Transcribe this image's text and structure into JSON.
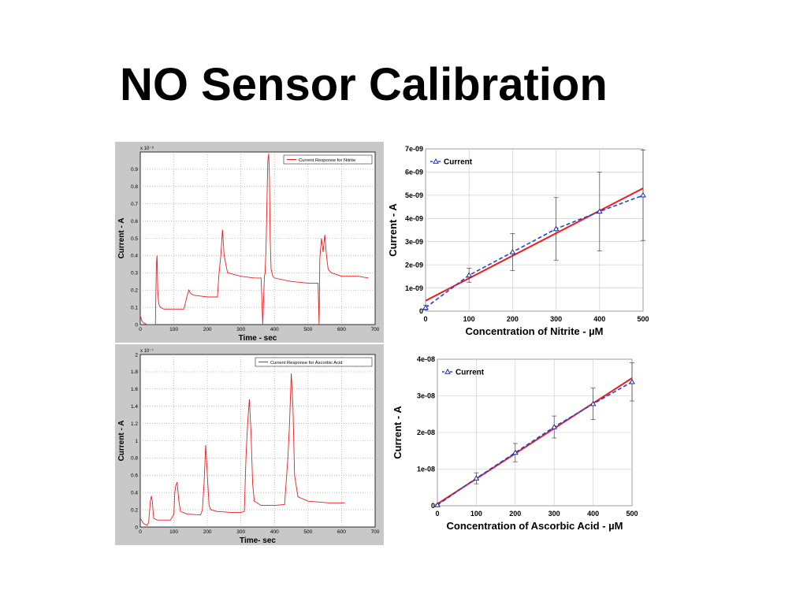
{
  "slide": {
    "title": "NO Sensor Calibration"
  },
  "colors": {
    "trace": "#ee1c1c",
    "fit": "#ee1c1c",
    "trend": "#2244dd",
    "marker": "#1a2aa8",
    "grid": "#c8c8c8",
    "panel_bg": "#c8c8c8"
  },
  "chart_data": [
    {
      "id": "nitrite-time",
      "type": "line",
      "xlabel": "Time - sec",
      "ylabel": "Current - A",
      "exponent_label": "x 10⁻⁸",
      "legend": "Current Response for Nitrite",
      "legend_position": "top-right",
      "grid": true,
      "xlim": [
        0,
        700
      ],
      "ylim": [
        0,
        1
      ],
      "xticks": [
        "0",
        "100",
        "200",
        "300",
        "400",
        "500",
        "600",
        "700"
      ],
      "yticks": [
        "0",
        "0.1",
        "0.2",
        "0.3",
        "0.4",
        "0.5",
        "0.6",
        "0.7",
        "0.8",
        "0.9"
      ],
      "series": [
        {
          "x": [
            0,
            5,
            10,
            20,
            30,
            40,
            45,
            48,
            50,
            52,
            55,
            60,
            70,
            90,
            110,
            130,
            140,
            145,
            150,
            160,
            200,
            230,
            235,
            240,
            245,
            250,
            260,
            300,
            340,
            360,
            365,
            370,
            372,
            375,
            380,
            383,
            385,
            387,
            390,
            395,
            400,
            450,
            500,
            530,
            533,
            535,
            540,
            545,
            550,
            555,
            560,
            570,
            600,
            650,
            680
          ],
          "y": [
            0.05,
            0.02,
            0.01,
            0.0,
            0.0,
            0.0,
            0.0,
            0.35,
            0.4,
            0.2,
            0.12,
            0.1,
            0.09,
            0.09,
            0.09,
            0.09,
            0.17,
            0.2,
            0.18,
            0.17,
            0.16,
            0.16,
            0.3,
            0.4,
            0.55,
            0.4,
            0.3,
            0.28,
            0.27,
            0.27,
            0.0,
            0.28,
            0.3,
            0.45,
            0.95,
            0.99,
            0.85,
            0.5,
            0.32,
            0.28,
            0.27,
            0.25,
            0.24,
            0.24,
            0.0,
            0.38,
            0.5,
            0.42,
            0.52,
            0.4,
            0.32,
            0.3,
            0.28,
            0.28,
            0.27
          ]
        }
      ]
    },
    {
      "id": "ascorbic-time",
      "type": "line",
      "xlabel": "Time- sec",
      "ylabel": "Current - A",
      "exponent_label": "x 10⁻⁷",
      "legend": "Current Response for Ascorbic Acid",
      "legend_position": "top-right",
      "grid": true,
      "xlim": [
        0,
        700
      ],
      "ylim": [
        0,
        2
      ],
      "xticks": [
        "0",
        "100",
        "200",
        "300",
        "400",
        "500",
        "600",
        "700"
      ],
      "yticks": [
        "0",
        "0.2",
        "0.4",
        "0.6",
        "0.8",
        "1",
        "1.2",
        "1.4",
        "1.6",
        "1.8",
        "2"
      ],
      "series": [
        {
          "x": [
            0,
            10,
            20,
            25,
            30,
            33,
            36,
            40,
            50,
            90,
            100,
            103,
            106,
            110,
            115,
            120,
            140,
            180,
            185,
            190,
            195,
            200,
            205,
            210,
            230,
            270,
            300,
            310,
            315,
            320,
            325,
            330,
            335,
            340,
            360,
            400,
            430,
            440,
            445,
            450,
            455,
            460,
            470,
            500,
            560,
            610
          ],
          "y": [
            0.1,
            0.04,
            0.02,
            0.05,
            0.3,
            0.36,
            0.3,
            0.1,
            0.08,
            0.08,
            0.15,
            0.4,
            0.48,
            0.52,
            0.3,
            0.18,
            0.15,
            0.14,
            0.2,
            0.5,
            0.95,
            0.6,
            0.25,
            0.2,
            0.18,
            0.17,
            0.17,
            0.18,
            0.8,
            1.2,
            1.48,
            1.1,
            0.5,
            0.3,
            0.25,
            0.25,
            0.26,
            0.8,
            1.2,
            1.78,
            1.4,
            0.6,
            0.35,
            0.3,
            0.28,
            0.28
          ]
        }
      ]
    },
    {
      "id": "nitrite-cal",
      "type": "scatter",
      "xlabel": "Concentration of Nitrite - µM",
      "ylabel": "Current - A",
      "legend": "Current",
      "legend_position": "top-left",
      "grid": true,
      "xlim": [
        0,
        500
      ],
      "ylim": [
        0,
        7e-09
      ],
      "xticks": [
        "0",
        "100",
        "200",
        "300",
        "400",
        "500"
      ],
      "yticks": [
        "0",
        "1e-09",
        "2e-09",
        "3e-09",
        "4e-09",
        "5e-09",
        "6e-09",
        "7e-09"
      ],
      "series": [
        {
          "name": "Current",
          "x": [
            0,
            100,
            200,
            300,
            400,
            500
          ],
          "y": [
            1.5e-10,
            1.55e-09,
            2.55e-09,
            3.55e-09,
            4.3e-09,
            5e-09
          ],
          "err": [
            1e-10,
            3e-10,
            8e-10,
            1.35e-09,
            1.7e-09,
            1.95e-09
          ]
        }
      ],
      "fit_line": {
        "x": [
          0,
          505
        ],
        "y": [
          4.5e-10,
          5.35e-09
        ]
      }
    },
    {
      "id": "ascorbic-cal",
      "type": "scatter",
      "xlabel": "Concentration of Ascorbic Acid - µM",
      "ylabel": "Current - A",
      "legend": "Current",
      "legend_position": "top-left",
      "grid": true,
      "xlim": [
        0,
        500
      ],
      "ylim": [
        0,
        4e-08
      ],
      "xticks": [
        "0",
        "100",
        "200",
        "300",
        "400",
        "500"
      ],
      "yticks": [
        "0",
        "1e-08",
        "2e-08",
        "3e-08",
        "4e-08"
      ],
      "series": [
        {
          "name": "Current",
          "x": [
            0,
            100,
            200,
            300,
            400,
            500
          ],
          "y": [
            2e-10,
            7.5e-09,
            1.45e-08,
            2.15e-08,
            2.78e-08,
            3.38e-08
          ],
          "err": [
            2e-10,
            1.5e-09,
            2.5e-09,
            3e-09,
            4.3e-09,
            5.2e-09
          ]
        }
      ],
      "fit_line": {
        "x": [
          0,
          505
        ],
        "y": [
          5e-10,
          3.52e-08
        ]
      }
    }
  ]
}
